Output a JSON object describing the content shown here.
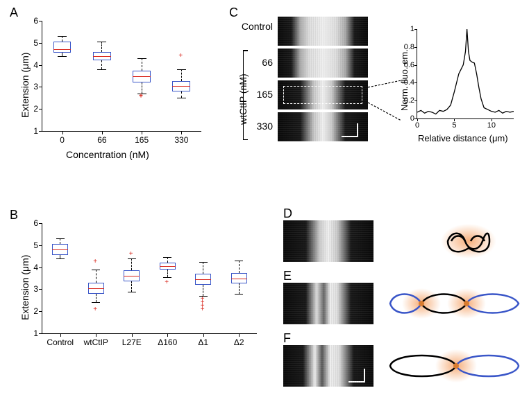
{
  "panelA": {
    "label": "A",
    "type": "boxplot",
    "xlabel": "Concentration (nM)",
    "ylabel": "Extension (μm)",
    "ylim": [
      1,
      6
    ],
    "ytick_step": 1,
    "categories": [
      "0",
      "66",
      "165",
      "330"
    ],
    "box_color": "#3a56c8",
    "median_color": "#d9261c",
    "outlier_color": "#d9261c",
    "background_color": "#ffffff",
    "label_fontsize": 14,
    "tick_fontsize": 12,
    "boxes": [
      {
        "q1": 4.55,
        "median": 4.7,
        "q3": 5.05,
        "wlo": 4.4,
        "whi": 5.3,
        "outliers": []
      },
      {
        "q1": 4.2,
        "median": 4.4,
        "q3": 4.6,
        "wlo": 3.8,
        "whi": 5.05,
        "outliers": []
      },
      {
        "q1": 3.2,
        "median": 3.5,
        "q3": 3.75,
        "wlo": 2.7,
        "whi": 4.3,
        "outliers": [
          2.5,
          2.55,
          2.55
        ]
      },
      {
        "q1": 2.8,
        "median": 3.05,
        "q3": 3.25,
        "wlo": 2.5,
        "whi": 3.8,
        "outliers": [
          4.35
        ]
      }
    ]
  },
  "panelB": {
    "label": "B",
    "type": "boxplot",
    "xlabel": "",
    "ylabel": "Extension (μm)",
    "ylim": [
      1,
      6
    ],
    "ytick_step": 1,
    "categories": [
      "Control",
      "wtCtIP",
      "L27E",
      "Δ160",
      "Δ1",
      "Δ2"
    ],
    "box_color": "#3a56c8",
    "median_color": "#d9261c",
    "outlier_color": "#d9261c",
    "background_color": "#ffffff",
    "label_fontsize": 14,
    "tick_fontsize": 12,
    "boxes": [
      {
        "q1": 4.55,
        "median": 4.8,
        "q3": 5.05,
        "wlo": 4.4,
        "whi": 5.3,
        "outliers": []
      },
      {
        "q1": 2.8,
        "median": 3.05,
        "q3": 3.3,
        "wlo": 2.4,
        "whi": 3.9,
        "outliers": [
          2.05,
          4.2
        ]
      },
      {
        "q1": 3.35,
        "median": 3.6,
        "q3": 3.85,
        "wlo": 2.9,
        "whi": 4.4,
        "outliers": [
          4.55
        ]
      },
      {
        "q1": 3.9,
        "median": 4.05,
        "q3": 4.2,
        "wlo": 3.55,
        "whi": 4.45,
        "outliers": [
          3.25
        ]
      },
      {
        "q1": 3.2,
        "median": 3.45,
        "q3": 3.7,
        "wlo": 2.7,
        "whi": 4.25,
        "outliers": [
          2.05,
          2.2,
          2.35,
          2.5
        ]
      },
      {
        "q1": 3.25,
        "median": 3.5,
        "q3": 3.75,
        "wlo": 2.8,
        "whi": 4.3,
        "outliers": []
      }
    ]
  },
  "panelC": {
    "label": "C",
    "group_label": "wtCtIP (nM)",
    "rows": [
      {
        "label": "Control",
        "width_style": "wide"
      },
      {
        "label": "66",
        "width_style": "wide"
      },
      {
        "label": "165",
        "width_style": "narrow"
      },
      {
        "label": "330",
        "width_style": "narrow"
      }
    ],
    "scalebar_color": "#ffffff",
    "inset_chart": {
      "type": "line",
      "xlabel": "Relative distance (μm)",
      "ylabel": "Norm. fluo. em.",
      "xlim": [
        0,
        13
      ],
      "ylim": [
        0,
        1
      ],
      "xticks": [
        0,
        5,
        10
      ],
      "yticks": [
        0,
        0.2,
        0.4,
        0.6,
        0.8,
        1
      ],
      "line_color": "#000000",
      "background_color": "#ffffff",
      "label_fontsize": 13,
      "tick_fontsize": 11,
      "points": [
        [
          0,
          0.07
        ],
        [
          0.5,
          0.09
        ],
        [
          1,
          0.06
        ],
        [
          1.5,
          0.08
        ],
        [
          2,
          0.07
        ],
        [
          2.5,
          0.05
        ],
        [
          3,
          0.09
        ],
        [
          3.5,
          0.08
        ],
        [
          4,
          0.1
        ],
        [
          4.5,
          0.15
        ],
        [
          5,
          0.3
        ],
        [
          5.3,
          0.4
        ],
        [
          5.6,
          0.5
        ],
        [
          5.9,
          0.55
        ],
        [
          6.2,
          0.6
        ],
        [
          6.5,
          0.75
        ],
        [
          6.7,
          1.0
        ],
        [
          6.9,
          0.75
        ],
        [
          7.1,
          0.65
        ],
        [
          7.4,
          0.63
        ],
        [
          7.7,
          0.62
        ],
        [
          8.0,
          0.5
        ],
        [
          8.3,
          0.35
        ],
        [
          8.6,
          0.22
        ],
        [
          9,
          0.12
        ],
        [
          9.5,
          0.1
        ],
        [
          10,
          0.08
        ],
        [
          10.5,
          0.07
        ],
        [
          11,
          0.09
        ],
        [
          11.5,
          0.06
        ],
        [
          12,
          0.08
        ],
        [
          12.5,
          0.07
        ],
        [
          13,
          0.08
        ]
      ]
    }
  },
  "panelD": {
    "label": "D",
    "micrograph_style": "narrow",
    "diagram": {
      "type": "short",
      "blob_color": "#f5a56b",
      "strand_color": "#000000"
    }
  },
  "panelE": {
    "label": "E",
    "micrograph_style": "double",
    "diagram": {
      "type": "long_two_blobs",
      "blob_color": "#f5a56b",
      "strand_color_a": "#3a56c8",
      "strand_color_b": "#000000"
    }
  },
  "panelF": {
    "label": "F",
    "micrograph_style": "double",
    "diagram": {
      "type": "long_one_blob",
      "blob_color": "#f5a56b",
      "strand_color_a": "#000000",
      "strand_color_b": "#3a56c8"
    }
  }
}
